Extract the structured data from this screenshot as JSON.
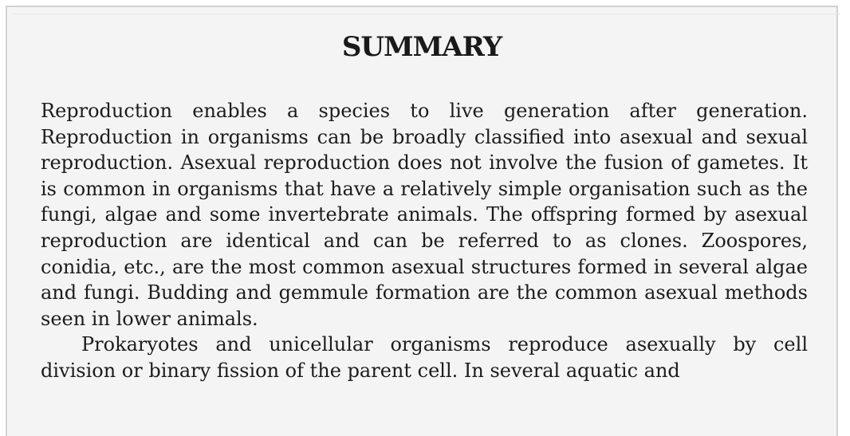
{
  "title": "SUMMARY",
  "paragraphs": [
    "Reproduction enables a species to live generation after generation. Reproduction in organisms can be broadly classified into asexual and sexual reproduction. Asexual reproduction does not involve the fusion of gametes. It is common in organisms that have a relatively simple organisation such as the fungi, algae and some invertebrate animals. The offspring formed by asexual reproduction are identical and can be referred to as clones. Zoospores, conidia, etc., are the most common asexual structures formed in several algae and fungi. Budding and gemmule formation are the common asexual methods seen in lower animals.",
    "Prokaryotes and unicellular organisms reproduce asexually by cell division or binary fission of the parent cell. In several aquatic and"
  ]
}
